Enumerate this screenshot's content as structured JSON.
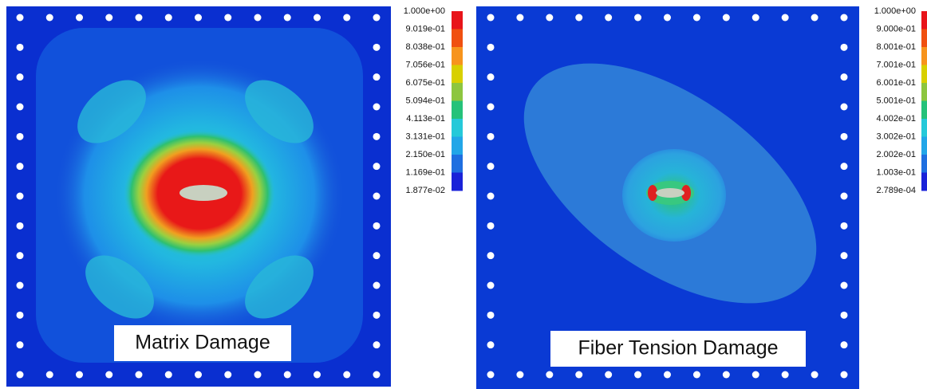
{
  "panels": [
    {
      "label": "Matrix Damage",
      "legend": [
        "1.000e+00",
        "9.019e-01",
        "8.038e-01",
        "7.056e-01",
        "6.075e-01",
        "5.094e-01",
        "4.113e-01",
        "3.131e-01",
        "2.150e-01",
        "1.169e-01",
        "1.877e-02"
      ]
    },
    {
      "label": "Fiber Tension Damage",
      "legend": [
        "1.000e+00",
        "9.000e-01",
        "8.001e-01",
        "7.001e-01",
        "6.001e-01",
        "5.001e-01",
        "4.002e-01",
        "3.002e-01",
        "2.002e-01",
        "1.003e-01",
        "2.789e-04"
      ]
    }
  ]
}
